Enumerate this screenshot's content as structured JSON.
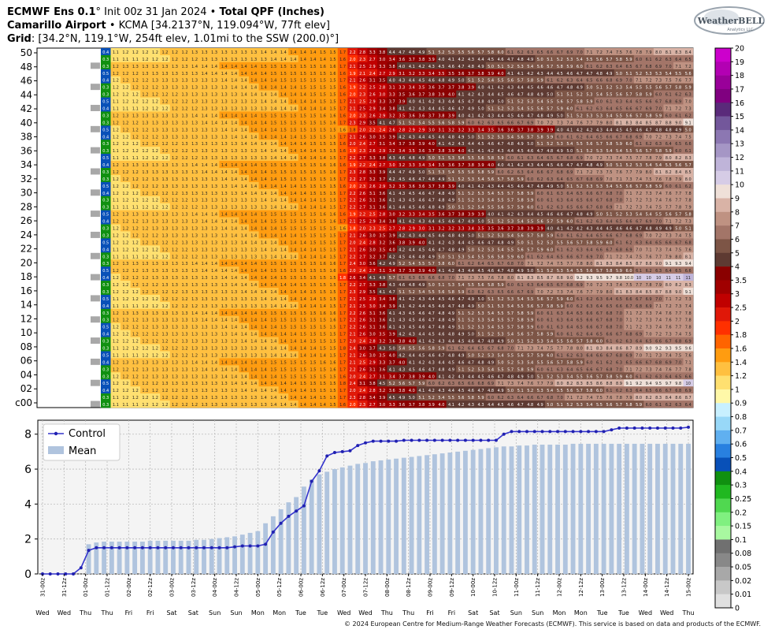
{
  "header": {
    "model": "ECMWF Ens 0.1",
    "deg": "°",
    "init": "Init 00z 31 Jan 2024",
    "bullet": "•",
    "product": "Total QPF (Inches)",
    "site_name": "Camarillo Airport",
    "site_info": "KCMA [34.2137°N, 119.094°W, 77ft elev]",
    "grid_label": "Grid",
    "grid_info": ": [34.2°N, 119.1°W, 254ft elev, 1.01mi to the SSW (200.0)°]"
  },
  "logo": {
    "line1": "WeatherBELL",
    "line2": "Analytics LLC"
  },
  "footer": "© 2024 European Centre for Medium-Range Weather Forecasts (ECMWF). This service is based on data and products of the ECMWF.",
  "chart_data": [
    {
      "type": "heatmap",
      "title": "Total QPF (Inches)",
      "description_rows": "ensemble members",
      "y_tick_labels": [
        "50",
        "48",
        "46",
        "44",
        "42",
        "40",
        "38",
        "36",
        "34",
        "32",
        "30",
        "28",
        "26",
        "24",
        "22",
        "20",
        "18",
        "16",
        "14",
        "12",
        "10",
        "08",
        "06",
        "04",
        "02",
        "c00"
      ],
      "member_rows": 51,
      "n_columns": 60,
      "member_final_values": [
        6.4,
        8.7,
        6.9,
        10,
        6.6,
        7.8,
        7.1,
        7.6,
        9.6,
        6.9,
        7.5,
        7.8,
        7.8,
        7.8,
        7.4,
        7.3,
        9.1,
        8.3,
        11,
        6.6,
        9.4,
        8.1,
        7.6,
        6.8,
        7.5,
        5.1,
        7.3,
        5.8,
        7.9,
        7.8,
        7.8,
        6.2,
        8.0,
        8.5,
        5.7,
        8.3,
        6.1,
        6.6,
        7.5,
        5.0,
        9.1,
        6.2,
        7.3,
        7.0,
        6.3,
        5.9,
        7.7,
        5.6,
        7.2,
        6.5,
        8.4
      ],
      "colorbar": {
        "ticks": [
          "20",
          "19",
          "18",
          "17",
          "16",
          "15",
          "14",
          "13",
          "12",
          "11",
          "10",
          "9",
          "8",
          "7",
          "6",
          "5",
          "4",
          "3.5",
          "3",
          "2.5",
          "2",
          "1.8",
          "1.6",
          "1.4",
          "1.2",
          "1",
          "0.9",
          "0.8",
          "0.7",
          "0.6",
          "0.5",
          "0.4",
          "0.3",
          "0.25",
          "0.2",
          "0.15",
          "0.1",
          "0.08",
          "0.05",
          "0.02",
          "0.01",
          "0"
        ],
        "colors": [
          "#cc00cc",
          "#b300b3",
          "#990099",
          "#800080",
          "#5a2a7a",
          "#73579b",
          "#8c77b2",
          "#a596c5",
          "#bfb4d9",
          "#d6cce6",
          "#efe0d8",
          "#d9b3a6",
          "#bf9282",
          "#a37568",
          "#7d5546",
          "#5e3a32",
          "#8a0000",
          "#a00000",
          "#c00000",
          "#e01808",
          "#ff3000",
          "#ff6400",
          "#ff9c10",
          "#ffc040",
          "#ffe070",
          "#fff8a8",
          "#c8f0ff",
          "#98d8f8",
          "#60b0f0",
          "#2880e0",
          "#0850b8",
          "#109010",
          "#20b820",
          "#50d850",
          "#80f080",
          "#a8f8a0",
          "#707070",
          "#888888",
          "#a8a8a8",
          "#c8c8c8",
          "#e0e0e0",
          "#ffffff"
        ]
      }
    },
    {
      "type": "line",
      "title": "",
      "ylabel": "",
      "ylim": [
        0,
        8.8
      ],
      "y_ticks": [
        0,
        2,
        4,
        6,
        8
      ],
      "grid": true,
      "legend": "top-left",
      "x_tick_labels": [
        "31-00z",
        "31-12z",
        "01-00z",
        "01-12z",
        "02-00z",
        "02-12z",
        "03-00z",
        "03-12z",
        "04-00z",
        "04-12z",
        "05-00z",
        "05-12z",
        "06-00z",
        "06-12z",
        "07-00z",
        "07-12z",
        "08-00z",
        "08-12z",
        "09-00z",
        "09-12z",
        "10-00z",
        "10-12z",
        "11-00z",
        "11-12z",
        "12-00z",
        "12-12z",
        "13-00z",
        "13-12z",
        "14-00z",
        "14-12z",
        "15-00z"
      ],
      "day_labels": [
        "Wed",
        "Wed",
        "Thu",
        "Thu",
        "Fri",
        "Fri",
        "Sat",
        "Sat",
        "Sun",
        "Sun",
        "Mon",
        "Mon",
        "Tue",
        "Tue",
        "Wed",
        "Wed",
        "Thu",
        "Thu",
        "Fri",
        "Fri",
        "Sat",
        "Sat",
        "Sun",
        "Sun",
        "Mon",
        "Mon",
        "Tue",
        "Tue",
        "Wed",
        "Wed",
        "Thu"
      ],
      "series": [
        {
          "name": "Control",
          "color": "#3333cc",
          "values": [
            0,
            0,
            0,
            0,
            0,
            0.35,
            1.35,
            1.5,
            1.5,
            1.5,
            1.5,
            1.5,
            1.5,
            1.5,
            1.5,
            1.5,
            1.5,
            1.5,
            1.5,
            1.5,
            1.5,
            1.5,
            1.5,
            1.5,
            1.5,
            1.55,
            1.6,
            1.6,
            1.6,
            1.7,
            2.4,
            2.9,
            3.3,
            3.6,
            3.9,
            5.3,
            5.9,
            6.75,
            6.95,
            7.0,
            7.05,
            7.35,
            7.5,
            7.6,
            7.6,
            7.6,
            7.6,
            7.65,
            7.65,
            7.65,
            7.65,
            7.65,
            7.65,
            7.65,
            7.65,
            7.65,
            7.65,
            7.65,
            7.65,
            7.65,
            8.0,
            8.15,
            8.15,
            8.15,
            8.15,
            8.15,
            8.15,
            8.15,
            8.15,
            8.15,
            8.15,
            8.15,
            8.15,
            8.15,
            8.25,
            8.35,
            8.35,
            8.35,
            8.35,
            8.35,
            8.35,
            8.35,
            8.35,
            8.35,
            8.4
          ]
        },
        {
          "name": "Mean",
          "color": "#b0c4de",
          "values": [
            0,
            0,
            0,
            0,
            0,
            0,
            1.7,
            1.8,
            1.85,
            1.85,
            1.85,
            1.85,
            1.85,
            1.85,
            1.9,
            1.9,
            1.9,
            1.9,
            1.9,
            1.9,
            1.95,
            1.95,
            2.0,
            2.05,
            2.1,
            2.15,
            2.25,
            2.35,
            2.45,
            2.9,
            3.3,
            3.7,
            4.1,
            4.4,
            5.0,
            5.4,
            5.7,
            5.85,
            6.0,
            6.1,
            6.2,
            6.3,
            6.35,
            6.45,
            6.5,
            6.55,
            6.6,
            6.65,
            6.7,
            6.75,
            6.8,
            6.85,
            6.9,
            6.95,
            7.0,
            7.05,
            7.1,
            7.15,
            7.2,
            7.25,
            7.3,
            7.3,
            7.35,
            7.35,
            7.4,
            7.4,
            7.4,
            7.4,
            7.4,
            7.45,
            7.45,
            7.45,
            7.45,
            7.45,
            7.45,
            7.45,
            7.45,
            7.45,
            7.45,
            7.45,
            7.45,
            7.45,
            7.45,
            7.45,
            7.45
          ]
        }
      ]
    }
  ]
}
